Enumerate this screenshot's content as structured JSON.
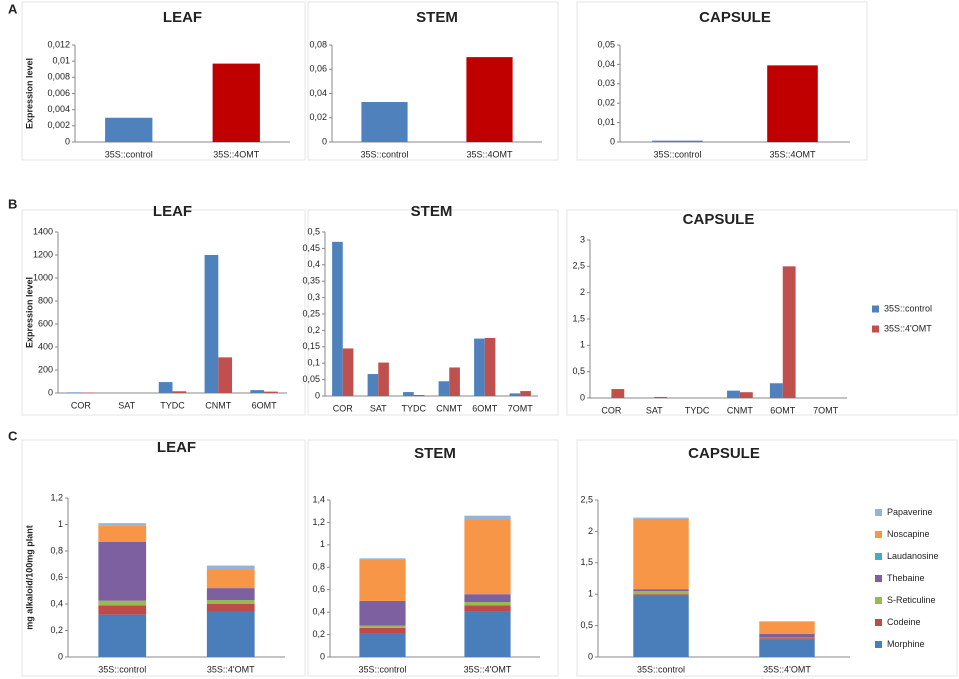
{
  "panels": [
    "A",
    "B",
    "C"
  ],
  "chart_data": [
    {
      "type": "bar",
      "title": "LEAF",
      "y_label": "Expression level",
      "categories": [
        "35S::control",
        "35S::4OMT"
      ],
      "values": [
        0.003,
        0.0097
      ],
      "colors": [
        "#4f81bd",
        "#c00000"
      ],
      "ylim": [
        0,
        0.012
      ],
      "yticks": [
        0,
        {
          "value": 0.002,
          "label": "0,002"
        },
        {
          "value": 0.004,
          "label": "0,004"
        },
        {
          "value": 0.006,
          "label": "0,006"
        },
        {
          "value": 0.008,
          "label": "0,008"
        },
        {
          "value": 0.01,
          "label": "0,01"
        },
        {
          "value": 0.012,
          "label": "0,012"
        }
      ]
    },
    {
      "type": "bar",
      "title": "STEM",
      "categories": [
        "35S::control",
        "35S::4OMT"
      ],
      "values": [
        0.033,
        0.07
      ],
      "colors": [
        "#4f81bd",
        "#c00000"
      ],
      "ylim": [
        0,
        0.08
      ],
      "yticks": [
        0,
        {
          "value": 0.02,
          "label": "0,02"
        },
        {
          "value": 0.04,
          "label": "0,04"
        },
        {
          "value": 0.06,
          "label": "0,06"
        },
        {
          "value": 0.08,
          "label": "0,08"
        }
      ]
    },
    {
      "type": "bar",
      "title": "CAPSULE",
      "categories": [
        "35S::control",
        "35S::4OMT"
      ],
      "values": [
        0.0007,
        0.0395
      ],
      "colors": [
        "#4f81bd",
        "#c00000"
      ],
      "ylim": [
        0,
        0.05
      ],
      "yticks": [
        0,
        {
          "value": 0.01,
          "label": "0,01"
        },
        {
          "value": 0.02,
          "label": "0,02"
        },
        {
          "value": 0.03,
          "label": "0,03"
        },
        {
          "value": 0.04,
          "label": "0,04"
        },
        {
          "value": 0.05,
          "label": "0,05"
        }
      ]
    },
    {
      "type": "grouped_bar",
      "title": "LEAF",
      "y_label": "Expression level",
      "categories": [
        "COR",
        "SAT",
        "TYDC",
        "CNMT",
        "6OMT"
      ],
      "series": [
        {
          "name": "35S::control",
          "color": "#4f81bd",
          "values": [
            5,
            0,
            95,
            1200,
            25
          ]
        },
        {
          "name": "35S::4'OMT",
          "color": "#c0504d",
          "values": [
            3,
            0,
            15,
            310,
            12
          ]
        }
      ],
      "ylim": [
        0,
        1400
      ],
      "yticks": [
        0,
        200,
        400,
        600,
        800,
        1000,
        1200,
        1400
      ]
    },
    {
      "type": "grouped_bar",
      "title": "STEM",
      "categories": [
        "COR",
        "SAT",
        "TYDC",
        "CNMT",
        "6OMT",
        "7OMT"
      ],
      "series": [
        {
          "name": "35S::control",
          "color": "#4f81bd",
          "values": [
            0.47,
            0.067,
            0.012,
            0.045,
            0.175,
            0.008
          ]
        },
        {
          "name": "35S::4'OMT",
          "color": "#c0504d",
          "values": [
            0.145,
            0.102,
            0.003,
            0.087,
            0.177,
            0.015
          ]
        }
      ],
      "ylim": [
        0,
        0.5
      ],
      "yticks": [
        0,
        {
          "value": 0.05,
          "label": "0,05"
        },
        {
          "value": 0.1,
          "label": "0,1"
        },
        {
          "value": 0.15,
          "label": "0,15"
        },
        {
          "value": 0.2,
          "label": "0,2"
        },
        {
          "value": 0.25,
          "label": "0,25"
        },
        {
          "value": 0.3,
          "label": "0,3"
        },
        {
          "value": 0.35,
          "label": "0,35"
        },
        {
          "value": 0.4,
          "label": "0,4"
        },
        {
          "value": 0.45,
          "label": "0,45"
        },
        {
          "value": 0.5,
          "label": "0,5"
        }
      ]
    },
    {
      "type": "grouped_bar",
      "title": "CAPSULE",
      "legend": "right",
      "categories": [
        "COR",
        "SAT",
        "TYDC",
        "CNMT",
        "6OMT",
        "7OMT"
      ],
      "series": [
        {
          "name": "35S::control",
          "color": "#4f81bd",
          "values": [
            0,
            0,
            0,
            0.14,
            0.28,
            0
          ]
        },
        {
          "name": "35S::4'OMT",
          "color": "#c0504d",
          "values": [
            0.17,
            0.02,
            0,
            0.11,
            2.5,
            0
          ]
        }
      ],
      "ylim": [
        0,
        3
      ],
      "yticks": [
        0,
        {
          "value": 0.5,
          "label": "0,5"
        },
        1,
        {
          "value": 1.5,
          "label": "1,5"
        },
        2,
        {
          "value": 2.5,
          "label": "2,5"
        },
        3
      ]
    },
    {
      "type": "stacked_bar",
      "title": "LEAF",
      "y_label": "mg alkaloid/100mg plant",
      "categories": [
        "35S::control",
        "35S::4'OMT"
      ],
      "series": [
        {
          "name": "Morphine",
          "color": "#4a7ebb",
          "values": [
            0.32,
            0.34
          ]
        },
        {
          "name": "Codeine",
          "color": "#be4b48",
          "values": [
            0.07,
            0.06
          ]
        },
        {
          "name": "S-Reticuline",
          "color": "#98b954",
          "values": [
            0.035,
            0.03
          ]
        },
        {
          "name": "Thebaine",
          "color": "#7d60a0",
          "values": [
            0.445,
            0.09
          ]
        },
        {
          "name": "Laudanosine",
          "color": "#46aac5",
          "values": [
            0,
            0
          ]
        },
        {
          "name": "Noscapine",
          "color": "#f79646",
          "values": [
            0.12,
            0.14
          ]
        },
        {
          "name": "Papaverine",
          "color": "#95b3d7",
          "values": [
            0.02,
            0.03
          ]
        }
      ],
      "ylim": [
        0,
        1.2
      ],
      "yticks": [
        0,
        {
          "value": 0.2,
          "label": "0,2"
        },
        {
          "value": 0.4,
          "label": "0,4"
        },
        {
          "value": 0.6,
          "label": "0,6"
        },
        {
          "value": 0.8,
          "label": "0,8"
        },
        1,
        {
          "value": 1.2,
          "label": "1,2"
        }
      ]
    },
    {
      "type": "stacked_bar",
      "title": "STEM",
      "categories": [
        "35S::control",
        "35S::4'OMT"
      ],
      "series": [
        {
          "name": "Morphine",
          "color": "#4a7ebb",
          "values": [
            0.21,
            0.41
          ]
        },
        {
          "name": "Codeine",
          "color": "#be4b48",
          "values": [
            0.05,
            0.05
          ]
        },
        {
          "name": "S-Reticuline",
          "color": "#98b954",
          "values": [
            0.02,
            0.03
          ]
        },
        {
          "name": "Thebaine",
          "color": "#7d60a0",
          "values": [
            0.22,
            0.07
          ]
        },
        {
          "name": "Laudanosine",
          "color": "#46aac5",
          "values": [
            0,
            0
          ]
        },
        {
          "name": "Noscapine",
          "color": "#f79646",
          "values": [
            0.37,
            0.67
          ]
        },
        {
          "name": "Papaverine",
          "color": "#95b3d7",
          "values": [
            0.01,
            0.03
          ]
        }
      ],
      "ylim": [
        0,
        1.4
      ],
      "yticks": [
        0,
        {
          "value": 0.2,
          "label": "0,2"
        },
        {
          "value": 0.4,
          "label": "0,4"
        },
        {
          "value": 0.6,
          "label": "0,6"
        },
        {
          "value": 0.8,
          "label": "0,8"
        },
        1,
        {
          "value": 1.2,
          "label": "1,2"
        },
        {
          "value": 1.4,
          "label": "1,4"
        }
      ]
    },
    {
      "type": "stacked_bar",
      "title": "CAPSULE",
      "legend": "right",
      "categories": [
        "35S::control",
        "35S::4'OMT"
      ],
      "series": [
        {
          "name": "Morphine",
          "color": "#4a7ebb",
          "values": [
            0.98,
            0.28
          ]
        },
        {
          "name": "Codeine",
          "color": "#be4b48",
          "values": [
            0.02,
            0.02
          ]
        },
        {
          "name": "S-Reticuline",
          "color": "#98b954",
          "values": [
            0.05,
            0.01
          ]
        },
        {
          "name": "Thebaine",
          "color": "#7d60a0",
          "values": [
            0.03,
            0.06
          ]
        },
        {
          "name": "Laudanosine",
          "color": "#46aac5",
          "values": [
            0,
            0
          ]
        },
        {
          "name": "Noscapine",
          "color": "#f79646",
          "values": [
            1.12,
            0.19
          ]
        },
        {
          "name": "Papaverine",
          "color": "#95b3d7",
          "values": [
            0.02,
            0.01
          ]
        }
      ],
      "ylim": [
        0,
        2.5
      ],
      "yticks": [
        0,
        {
          "value": 0.5,
          "label": "0,5"
        },
        1,
        {
          "value": 1.5,
          "label": "1,5"
        },
        2,
        {
          "value": 2.5,
          "label": "2,5"
        }
      ]
    }
  ]
}
